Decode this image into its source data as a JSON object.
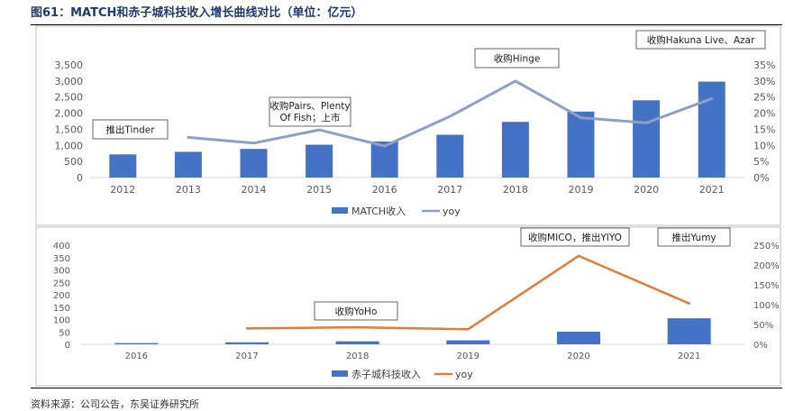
{
  "figure_title": "图61：MATCH和赤子城科技收入增长曲线对比（单位：亿元）",
  "source_note": "资料来源：公司公告，东吴证券研究所",
  "chart_data": [
    {
      "type": "bar",
      "categories": [
        "2012",
        "2013",
        "2014",
        "2015",
        "2016",
        "2017",
        "2018",
        "2019",
        "2020",
        "2021"
      ],
      "series": [
        {
          "name": "MATCH收入",
          "type": "bar",
          "axis": "left",
          "color": "#4472c4",
          "values": [
            720,
            800,
            890,
            1020,
            1120,
            1330,
            1730,
            2050,
            2400,
            2980
          ]
        },
        {
          "name": "yoy",
          "type": "line",
          "axis": "right",
          "color": "#8ea0c8",
          "values": [
            null,
            0.125,
            0.107,
            0.148,
            0.098,
            0.19,
            0.3,
            0.186,
            0.17,
            0.245
          ]
        }
      ],
      "y_left": {
        "min": 0,
        "max": 3500,
        "ticks": [
          0,
          500,
          1000,
          1500,
          2000,
          2500,
          3000,
          3500
        ],
        "tick_labels": [
          "0",
          "500",
          "1,000",
          "1,500",
          "2,000",
          "2,500",
          "3,000",
          "3,500"
        ]
      },
      "y_right": {
        "min": 0,
        "max": 0.35,
        "ticks": [
          0,
          0.05,
          0.1,
          0.15,
          0.2,
          0.25,
          0.3,
          0.35
        ],
        "tick_labels": [
          "0%",
          "5%",
          "10%",
          "15%",
          "20%",
          "25%",
          "30%",
          "35%"
        ]
      },
      "legend": {
        "position": "bottom",
        "items": [
          "MATCH收入",
          "yoy"
        ]
      },
      "annotations": [
        {
          "text": "推出Tinder",
          "x": "2012"
        },
        {
          "text": "收购Pairs、Plenty Of Fish；上市",
          "x": "2014"
        },
        {
          "text": "收购Hinge",
          "x": "2018"
        },
        {
          "text": "收购Hakuna Live、Azar",
          "x": "2021"
        }
      ],
      "grid": false
    },
    {
      "type": "bar",
      "categories": [
        "2016",
        "2017",
        "2018",
        "2019",
        "2020",
        "2021"
      ],
      "series": [
        {
          "name": "赤子城科技收入",
          "type": "bar",
          "axis": "left",
          "color": "#4472c4",
          "values": [
            5,
            8,
            12,
            16,
            51,
            105
          ]
        },
        {
          "name": "yoy",
          "type": "line",
          "axis": "right",
          "color": "#e07b39",
          "values": [
            null,
            0.4,
            0.43,
            0.38,
            2.23,
            1.03
          ]
        }
      ],
      "y_left": {
        "min": 0,
        "max": 400,
        "ticks": [
          0,
          50,
          100,
          150,
          200,
          250,
          300,
          350,
          400
        ],
        "tick_labels": [
          "0",
          "50",
          "100",
          "150",
          "200",
          "250",
          "300",
          "350",
          "400"
        ]
      },
      "y_right": {
        "min": 0,
        "max": 2.5,
        "ticks": [
          0,
          0.5,
          1.0,
          1.5,
          2.0,
          2.5
        ],
        "tick_labels": [
          "0%",
          "50%",
          "100%",
          "150%",
          "200%",
          "250%"
        ]
      },
      "legend": {
        "position": "bottom",
        "items": [
          "赤子城科技收入",
          "yoy"
        ]
      },
      "annotations": [
        {
          "text": "收购YoHo",
          "x": "2018"
        },
        {
          "text": "收购MICO，推出YIYO",
          "x": "2020"
        },
        {
          "text": "推出Yumy",
          "x": "2021"
        }
      ],
      "grid": false
    }
  ]
}
